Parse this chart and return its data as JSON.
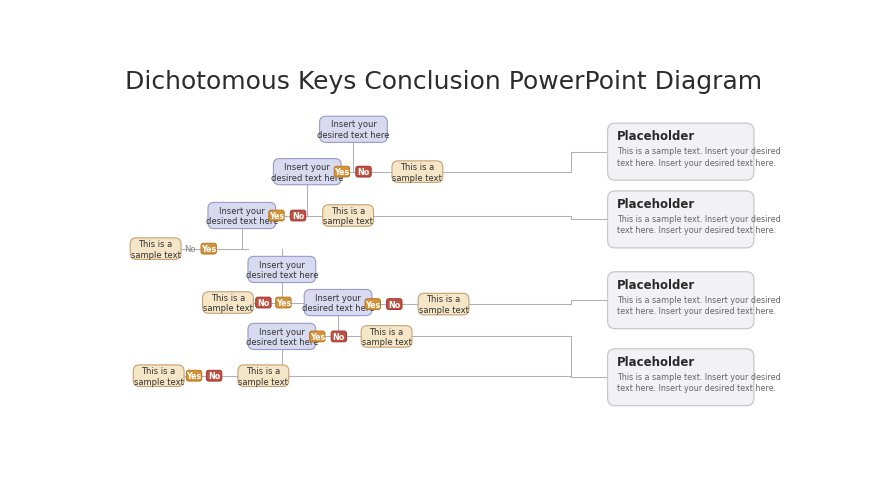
{
  "title": "Dichotomous Keys Conclusion PowerPoint Diagram",
  "title_fontsize": 18,
  "title_color": "#2c2c2c",
  "bg_color": "#ffffff",
  "node_fill_blue": "#d8daf0",
  "node_stroke_blue": "#9999cc",
  "node_fill_tan": "#f5e6c8",
  "node_stroke_tan": "#c8a070",
  "yes_fill": "#d4933a",
  "yes_stroke": "#b87820",
  "no_fill": "#c05040",
  "no_stroke": "#a03530",
  "placeholder_bg": "#f2f2f4",
  "placeholder_stroke": "#c8c8cc",
  "sample_text": "This is a\nsample text",
  "insert_text": "Insert your\ndesired text here",
  "placeholder_title": "Placeholder",
  "placeholder_body": "This is a sample text. Insert your desired\ntext here. Insert your desired text here.",
  "line_color": "#b0b0b8"
}
